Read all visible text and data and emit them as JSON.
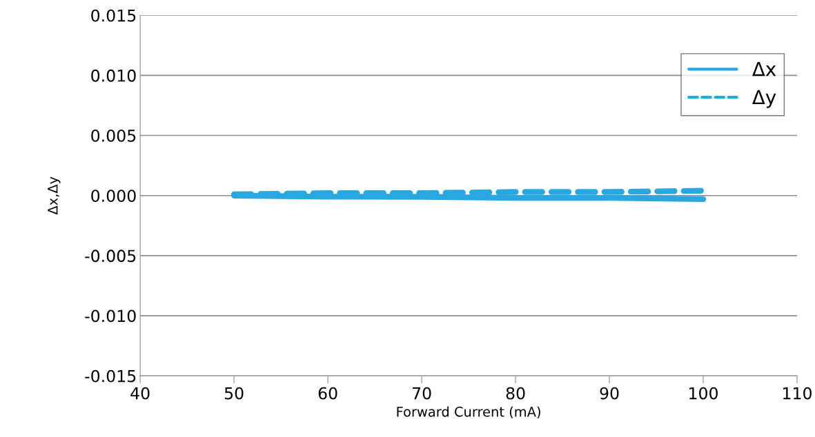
{
  "chart_data": {
    "type": "line",
    "xlabel": "Forward Current (mA)",
    "ylabel": "Δx,Δy",
    "x": [
      50,
      60,
      70,
      80,
      90,
      100
    ],
    "series": [
      {
        "name": "Δx",
        "color": "#29a8e0",
        "line_style": "solid",
        "values": [
          0.0,
          -0.0001,
          -0.0001,
          -0.0002,
          -0.0002,
          -0.0003
        ]
      },
      {
        "name": "Δy",
        "color": "#29a8e0",
        "line_style": "dashed",
        "values": [
          0.0001,
          0.0002,
          0.0002,
          0.0003,
          0.0003,
          0.0004
        ]
      }
    ],
    "xlim": [
      40,
      110
    ],
    "xticks": [
      40,
      50,
      60,
      70,
      80,
      90,
      100,
      110
    ],
    "ylim": [
      -0.015,
      0.015
    ],
    "yticks": [
      {
        "value": -0.015,
        "label": "-0.015"
      },
      {
        "value": -0.01,
        "label": "-0.010"
      },
      {
        "value": -0.005,
        "label": "-0.005"
      },
      {
        "value": 0,
        "label": "0.000"
      },
      {
        "value": 0.005,
        "label": "0.005"
      },
      {
        "value": 0.01,
        "label": "0.010"
      },
      {
        "value": 0.015,
        "label": "0.015"
      }
    ],
    "grid": "y",
    "legend": "top right",
    "marker": "none"
  }
}
